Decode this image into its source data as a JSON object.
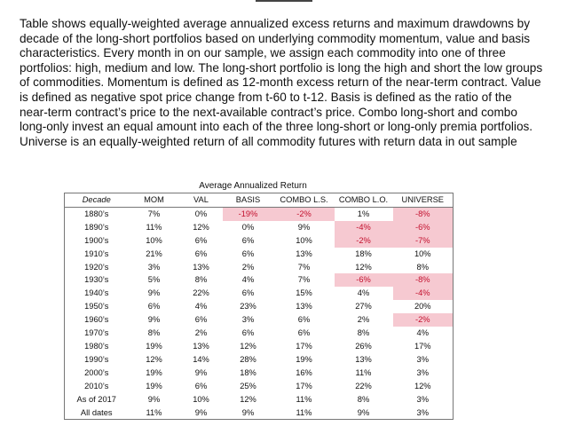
{
  "paragraph": "Table shows equally-weighted average annualized excess returns and maximum drawdowns by decade of the long-short portfolios based on underlying commodity momentum, value and basis characteristics. Every month in on our sample, we assign each commodity into one of three portfolios: high, medium and low. The long-short portfolio is long the high and short the low groups of commodities. Momentum is defined as 12-month excess return of the near-term contract. Value is defined as negative spot price change from t-60 to t-12. Basis is defined as the ratio of the near-term contract’s price to the next-available contract’s price. Combo long-short and combo long-only invest an equal amount into each of the three long-short or long-only premia portfolios. Universe is an equally-weighted return of all commodity futures with return data in out sample",
  "table": {
    "caption": "Average Annualized Return",
    "negative_bg": "#f6c9d1",
    "negative_text": "#c3102e",
    "headers": [
      "Decade",
      "MOM",
      "VAL",
      "BASIS",
      "COMBO L.S.",
      "COMBO L.O.",
      "UNIVERSE"
    ],
    "rows": [
      [
        "1880’s",
        "7%",
        "0%",
        "-19%",
        "-2%",
        "1%",
        "-8%"
      ],
      [
        "1890’s",
        "11%",
        "12%",
        "0%",
        "9%",
        "-4%",
        "-6%"
      ],
      [
        "1900’s",
        "10%",
        "6%",
        "6%",
        "10%",
        "-2%",
        "-7%"
      ],
      [
        "1910’s",
        "21%",
        "6%",
        "6%",
        "13%",
        "18%",
        "10%"
      ],
      [
        "1920’s",
        "3%",
        "13%",
        "2%",
        "7%",
        "12%",
        "8%"
      ],
      [
        "1930’s",
        "5%",
        "8%",
        "4%",
        "7%",
        "-6%",
        "-8%"
      ],
      [
        "1940’s",
        "9%",
        "22%",
        "6%",
        "15%",
        "4%",
        "-4%"
      ],
      [
        "1950’s",
        "6%",
        "4%",
        "23%",
        "13%",
        "27%",
        "20%"
      ],
      [
        "1960’s",
        "9%",
        "6%",
        "3%",
        "6%",
        "2%",
        "-2%"
      ],
      [
        "1970’s",
        "8%",
        "2%",
        "6%",
        "6%",
        "8%",
        "4%"
      ],
      [
        "1980’s",
        "19%",
        "13%",
        "12%",
        "17%",
        "26%",
        "17%"
      ],
      [
        "1990’s",
        "12%",
        "14%",
        "28%",
        "19%",
        "13%",
        "3%"
      ],
      [
        "2000’s",
        "19%",
        "9%",
        "18%",
        "16%",
        "11%",
        "3%"
      ],
      [
        "2010’s",
        "19%",
        "6%",
        "25%",
        "17%",
        "22%",
        "12%"
      ],
      [
        "As of 2017",
        "9%",
        "10%",
        "12%",
        "11%",
        "8%",
        "3%"
      ],
      [
        "All dates",
        "11%",
        "9%",
        "9%",
        "11%",
        "9%",
        "3%"
      ]
    ]
  }
}
